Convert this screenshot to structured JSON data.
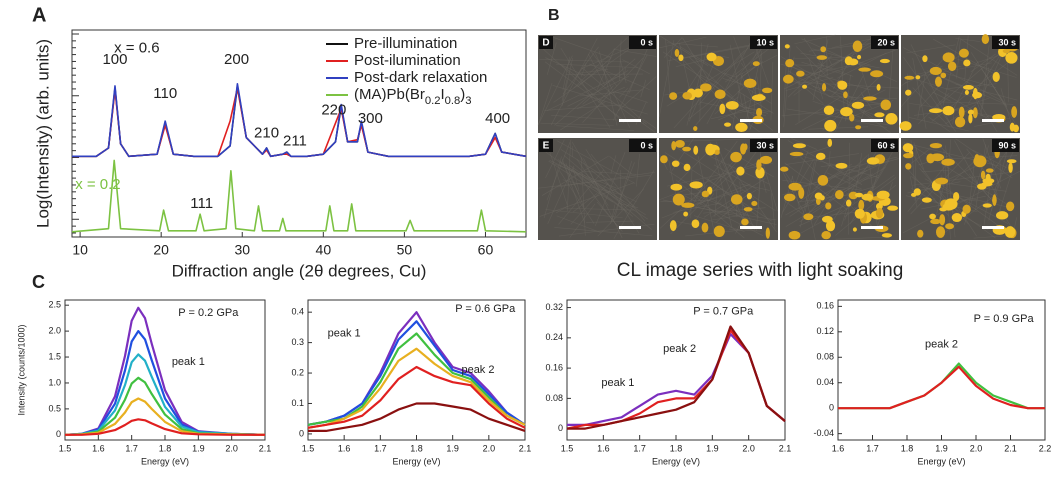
{
  "panel_labels": [
    "A",
    "B",
    "C"
  ],
  "panel_b": {
    "rows": [
      {
        "label": "D",
        "times": [
          "0 s",
          "10 s",
          "20 s",
          "30 s"
        ]
      },
      {
        "label": "E",
        "times": [
          "0 s",
          "30 s",
          "60 s",
          "90 s"
        ]
      }
    ],
    "caption": "CL image series with light soaking"
  },
  "chart_data": [
    {
      "type": "line",
      "xlabel": "Diffraction angle (2θ degrees, Cu)",
      "ylabel": "Log(Intensity) (arb. units)",
      "xlim": [
        9,
        65
      ],
      "xticks": [
        10,
        20,
        30,
        40,
        50,
        60
      ],
      "ylim": [
        0,
        10
      ],
      "legend": "upper right",
      "series": [
        {
          "name": "Pre-illumination",
          "color": "#111111",
          "x": [
            9,
            12,
            13.5,
            14.3,
            15,
            16,
            19.5,
            20.5,
            21.5,
            24,
            27,
            28.5,
            29.4,
            30.5,
            32.5,
            33,
            33.5,
            35,
            35.5,
            36,
            38,
            40,
            41.5,
            42.2,
            43,
            44.2,
            44.7,
            45.5,
            48,
            53,
            58,
            60,
            61.2,
            62,
            65
          ],
          "values": [
            3.9,
            3.9,
            4.3,
            7.2,
            4.5,
            3.9,
            4,
            5.5,
            4,
            3.9,
            3.9,
            4.4,
            7.3,
            4.8,
            4,
            4.3,
            3.9,
            4,
            4.1,
            3.9,
            3.9,
            4,
            4.6,
            6.3,
            4.6,
            4.6,
            5.5,
            4.1,
            3.9,
            3.9,
            3.9,
            4,
            5,
            4.1,
            3.9
          ]
        },
        {
          "name": "Post-ilumination",
          "color": "#e02020",
          "x": [
            9,
            12,
            13.5,
            14.3,
            15,
            16,
            19.5,
            20.5,
            21.5,
            24,
            27,
            28.5,
            29.4,
            30.5,
            32.5,
            33,
            33.5,
            35,
            35.5,
            36,
            38,
            40,
            41.5,
            42.2,
            43,
            44.2,
            44.7,
            45.5,
            48,
            53,
            58,
            60,
            61.2,
            62,
            65
          ],
          "values": [
            3.9,
            3.9,
            4.3,
            7.1,
            4.5,
            3.9,
            4,
            5.4,
            4,
            3.9,
            3.9,
            5.6,
            7.2,
            4.8,
            4,
            4.2,
            3.9,
            4,
            4,
            3.9,
            3.9,
            4,
            5.5,
            6.2,
            4.6,
            4.7,
            5.4,
            4.1,
            3.9,
            3.9,
            3.9,
            4,
            4.8,
            4.1,
            3.9
          ]
        },
        {
          "name": "Post-dark relaxation",
          "color": "#3040c0",
          "x": [
            9,
            12,
            13.5,
            14.3,
            15,
            16,
            19.5,
            20.5,
            21.5,
            24,
            27,
            28.5,
            29.4,
            30.5,
            32.5,
            33,
            33.5,
            35,
            35.5,
            36,
            38,
            40,
            41.5,
            42.2,
            43,
            44.2,
            44.7,
            45.5,
            48,
            53,
            58,
            60,
            61.2,
            62,
            65
          ],
          "values": [
            3.9,
            3.9,
            4.3,
            7.3,
            4.5,
            3.9,
            4,
            5.6,
            4,
            3.9,
            3.9,
            4.4,
            7.4,
            4.8,
            4,
            4.3,
            3.9,
            4,
            4.1,
            3.9,
            3.9,
            4,
            4.6,
            6.4,
            4.6,
            4.6,
            5.6,
            4.1,
            3.9,
            3.9,
            3.9,
            4,
            5,
            4.1,
            3.9
          ]
        },
        {
          "name": "(MA)Pb(Br0.2I0.8)3",
          "color": "#7cc242",
          "x": [
            9,
            13.5,
            14.2,
            15,
            19.8,
            20.3,
            20.9,
            24.3,
            24.8,
            25.3,
            28,
            28.6,
            29.2,
            31.5,
            32,
            32.5,
            34.6,
            35,
            35.4,
            40.3,
            40.8,
            41.3,
            43,
            43.5,
            44,
            50.2,
            50.7,
            51.2,
            59,
            59.5,
            60,
            65
          ],
          "values": [
            0.25,
            0.4,
            3.7,
            0.4,
            0.3,
            1.3,
            0.3,
            0.3,
            1.1,
            0.3,
            0.4,
            3.2,
            0.4,
            0.3,
            1.5,
            0.3,
            0.3,
            0.9,
            0.3,
            0.3,
            1.5,
            0.3,
            0.3,
            1.6,
            0.3,
            0.3,
            0.8,
            0.3,
            0.3,
            1.3,
            0.3,
            0.25
          ]
        }
      ],
      "annotations": [
        {
          "text": "x = 0.6",
          "x": 17,
          "y": 9.1
        },
        {
          "text": "x = 0.2",
          "x": 12.2,
          "y": 2.5,
          "color": "#7cc242"
        },
        {
          "text": "100",
          "x": 14.3,
          "y": 8.55
        },
        {
          "text": "110",
          "x": 20.5,
          "y": 6.9
        },
        {
          "text": "200",
          "x": 29.3,
          "y": 8.55
        },
        {
          "text": "210",
          "x": 33,
          "y": 5.0
        },
        {
          "text": "211",
          "x": 36.5,
          "y": 4.6
        },
        {
          "text": "220",
          "x": 41.3,
          "y": 6.1
        },
        {
          "text": "300",
          "x": 45.8,
          "y": 5.7
        },
        {
          "text": "400",
          "x": 61.5,
          "y": 5.7
        },
        {
          "text": "111",
          "x": 25,
          "y": 1.6
        }
      ]
    },
    {
      "type": "line",
      "xlabel": "Energy (eV)",
      "ylabel": "Intensity (counts/1000)",
      "xlim": [
        1.5,
        2.1
      ],
      "xticks": [
        1.5,
        1.6,
        1.7,
        1.8,
        1.9,
        {
          "value": 2,
          "label": "2.0"
        },
        2.1
      ],
      "ylim": [
        -0.1,
        2.6
      ],
      "yticks": [
        0,
        0.5,
        {
          "value": 1,
          "label": "1.0"
        },
        1.5,
        {
          "value": 2,
          "label": "2.0"
        },
        2.5
      ],
      "series": [
        {
          "color": "#7b2fbe",
          "x": [
            1.5,
            1.55,
            1.6,
            1.65,
            1.68,
            1.7,
            1.72,
            1.74,
            1.76,
            1.8,
            1.85,
            1.9,
            2,
            2.1
          ],
          "values": [
            0,
            0.02,
            0.12,
            0.74,
            1.52,
            2.2,
            2.45,
            2.25,
            1.76,
            0.86,
            0.25,
            0.07,
            0.02,
            0
          ]
        },
        {
          "color": "#2050e0",
          "x": [
            1.5,
            1.55,
            1.6,
            1.65,
            1.68,
            1.7,
            1.72,
            1.74,
            1.76,
            1.8,
            1.85,
            1.9,
            2,
            2.1
          ],
          "values": [
            0,
            0.02,
            0.1,
            0.6,
            1.24,
            1.8,
            2,
            1.84,
            1.44,
            0.7,
            0.2,
            0.06,
            0.02,
            0
          ]
        },
        {
          "color": "#22b0c8",
          "x": [
            1.5,
            1.55,
            1.6,
            1.65,
            1.68,
            1.7,
            1.72,
            1.74,
            1.76,
            1.8,
            1.85,
            1.9,
            2,
            2.1
          ],
          "values": [
            0,
            0.02,
            0.08,
            0.47,
            0.96,
            1.4,
            1.55,
            1.43,
            1.12,
            0.54,
            0.16,
            0.05,
            0.02,
            0
          ]
        },
        {
          "color": "#40c040",
          "x": [
            1.5,
            1.55,
            1.6,
            1.65,
            1.68,
            1.7,
            1.72,
            1.74,
            1.76,
            1.8,
            1.85,
            1.9,
            2,
            2.1
          ],
          "values": [
            0,
            0.01,
            0.06,
            0.33,
            0.68,
            0.99,
            1.1,
            1.01,
            0.79,
            0.39,
            0.11,
            0.03,
            0.01,
            0
          ]
        },
        {
          "color": "#e8b020",
          "x": [
            1.5,
            1.55,
            1.6,
            1.65,
            1.68,
            1.7,
            1.72,
            1.74,
            1.76,
            1.8,
            1.85,
            1.9,
            2,
            2.1
          ],
          "values": [
            0,
            0.01,
            0.04,
            0.21,
            0.43,
            0.63,
            0.7,
            0.64,
            0.5,
            0.25,
            0.07,
            0.02,
            0.01,
            0
          ]
        },
        {
          "color": "#e02020",
          "x": [
            1.5,
            1.55,
            1.6,
            1.65,
            1.68,
            1.7,
            1.72,
            1.74,
            1.76,
            1.8,
            1.85,
            1.9,
            2,
            2.1
          ],
          "values": [
            0,
            0,
            0.02,
            0.09,
            0.19,
            0.27,
            0.3,
            0.28,
            0.22,
            0.11,
            0.03,
            0.01,
            0,
            0
          ]
        }
      ],
      "annotations": [
        {
          "text": "P = 0.2 GPa",
          "x": 1.93,
          "y": 2.35
        },
        {
          "text": "peak 1",
          "x": 1.87,
          "y": 1.4
        }
      ]
    },
    {
      "type": "line",
      "xlabel": "Energy (eV)",
      "xlim": [
        1.5,
        2.1
      ],
      "xticks": [
        1.5,
        1.6,
        1.7,
        1.8,
        1.9,
        {
          "value": 2,
          "label": "2.0"
        },
        2.1
      ],
      "ylim": [
        -0.02,
        0.44
      ],
      "yticks": [
        0,
        0.1,
        0.2,
        0.3,
        0.4
      ],
      "series": [
        {
          "color": "#7b2fbe",
          "x": [
            1.5,
            1.55,
            1.6,
            1.65,
            1.7,
            1.75,
            1.8,
            1.85,
            1.9,
            1.95,
            2,
            2.05,
            2.1
          ],
          "values": [
            0.03,
            0.04,
            0.06,
            0.1,
            0.2,
            0.33,
            0.4,
            0.3,
            0.22,
            0.2,
            0.14,
            0.07,
            0.03
          ]
        },
        {
          "color": "#2050e0",
          "x": [
            1.5,
            1.55,
            1.6,
            1.65,
            1.7,
            1.75,
            1.8,
            1.85,
            1.9,
            1.95,
            2,
            2.05,
            2.1
          ],
          "values": [
            0.03,
            0.04,
            0.06,
            0.1,
            0.19,
            0.31,
            0.37,
            0.29,
            0.21,
            0.19,
            0.13,
            0.07,
            0.03
          ]
        },
        {
          "color": "#40c040",
          "x": [
            1.5,
            1.55,
            1.6,
            1.65,
            1.7,
            1.75,
            1.8,
            1.85,
            1.9,
            1.95,
            2,
            2.05,
            2.1
          ],
          "values": [
            0.03,
            0.04,
            0.05,
            0.09,
            0.17,
            0.28,
            0.33,
            0.26,
            0.2,
            0.18,
            0.12,
            0.06,
            0.03
          ]
        },
        {
          "color": "#e8b020",
          "x": [
            1.5,
            1.55,
            1.6,
            1.65,
            1.7,
            1.75,
            1.8,
            1.85,
            1.9,
            1.95,
            2,
            2.05,
            2.1
          ],
          "values": [
            0.02,
            0.03,
            0.05,
            0.08,
            0.15,
            0.24,
            0.28,
            0.23,
            0.19,
            0.17,
            0.11,
            0.06,
            0.03
          ]
        },
        {
          "color": "#e02020",
          "x": [
            1.5,
            1.55,
            1.6,
            1.65,
            1.7,
            1.75,
            1.8,
            1.85,
            1.9,
            1.95,
            2,
            2.05,
            2.1
          ],
          "values": [
            0.02,
            0.03,
            0.04,
            0.06,
            0.11,
            0.18,
            0.22,
            0.19,
            0.17,
            0.16,
            0.1,
            0.05,
            0.02
          ]
        },
        {
          "color": "#8a1010",
          "x": [
            1.5,
            1.55,
            1.6,
            1.65,
            1.7,
            1.75,
            1.8,
            1.85,
            1.9,
            1.95,
            2,
            2.05,
            2.1
          ],
          "values": [
            0.01,
            0.01,
            0.02,
            0.03,
            0.05,
            0.08,
            0.1,
            0.1,
            0.09,
            0.08,
            0.05,
            0.03,
            0.01
          ]
        }
      ],
      "annotations": [
        {
          "text": "P = 0.6 GPa",
          "x": 1.99,
          "y": 0.41
        },
        {
          "text": "peak 1",
          "x": 1.6,
          "y": 0.33
        },
        {
          "text": "peak 2",
          "x": 1.97,
          "y": 0.21
        }
      ]
    },
    {
      "type": "line",
      "xlabel": "Energy (eV)",
      "xlim": [
        1.5,
        2.1
      ],
      "xticks": [
        1.5,
        1.6,
        1.7,
        1.8,
        1.9,
        {
          "value": 2,
          "label": "2.0"
        },
        2.1
      ],
      "ylim": [
        -0.03,
        0.34
      ],
      "yticks": [
        0,
        0.08,
        0.16,
        0.24,
        0.32
      ],
      "series": [
        {
          "color": "#7b2fbe",
          "x": [
            1.5,
            1.55,
            1.6,
            1.65,
            1.7,
            1.75,
            1.8,
            1.85,
            1.9,
            1.95,
            2,
            2.05,
            2.1
          ],
          "values": [
            0.01,
            0.01,
            0.02,
            0.03,
            0.06,
            0.09,
            0.1,
            0.09,
            0.14,
            0.25,
            0.2,
            0.06,
            0.02
          ]
        },
        {
          "color": "#e02020",
          "x": [
            1.5,
            1.55,
            1.6,
            1.65,
            1.7,
            1.75,
            1.8,
            1.85,
            1.9,
            1.95,
            2,
            2.05,
            2.1
          ],
          "values": [
            0,
            0.01,
            0.01,
            0.02,
            0.04,
            0.07,
            0.08,
            0.08,
            0.13,
            0.26,
            0.2,
            0.06,
            0.02
          ]
        },
        {
          "color": "#8a1010",
          "x": [
            1.5,
            1.55,
            1.6,
            1.65,
            1.7,
            1.75,
            1.8,
            1.85,
            1.9,
            1.95,
            2,
            2.05,
            2.1
          ],
          "values": [
            0,
            0,
            0.01,
            0.02,
            0.03,
            0.04,
            0.05,
            0.07,
            0.13,
            0.27,
            0.2,
            0.06,
            0.02
          ]
        }
      ],
      "annotations": [
        {
          "text": "P = 0.7 GPa",
          "x": 1.93,
          "y": 0.31
        },
        {
          "text": "peak 2",
          "x": 1.81,
          "y": 0.21
        },
        {
          "text": "peak 1",
          "x": 1.64,
          "y": 0.12
        }
      ]
    },
    {
      "type": "line",
      "xlabel": "Energy (eV)",
      "xlim": [
        1.6,
        2.2
      ],
      "xticks": [
        1.6,
        1.7,
        1.8,
        1.9,
        {
          "value": 2,
          "label": "2.0"
        },
        2.1,
        2.2
      ],
      "ylim": [
        -0.05,
        0.17
      ],
      "yticks": [
        -0.04,
        0,
        0.04,
        0.08,
        0.12,
        0.16
      ],
      "series": [
        {
          "color": "#40c040",
          "x": [
            1.6,
            1.65,
            1.7,
            1.75,
            1.8,
            1.85,
            1.9,
            1.95,
            2,
            2.05,
            2.1,
            2.15,
            2.2
          ],
          "values": [
            0,
            0,
            0,
            0,
            0.01,
            0.02,
            0.04,
            0.07,
            0.04,
            0.02,
            0.01,
            0,
            0
          ]
        },
        {
          "color": "#e02020",
          "x": [
            1.6,
            1.65,
            1.7,
            1.75,
            1.8,
            1.85,
            1.9,
            1.95,
            2,
            2.05,
            2.1,
            2.15,
            2.2
          ],
          "values": [
            0,
            0,
            0,
            0,
            0.01,
            0.02,
            0.04,
            0.065,
            0.035,
            0.015,
            0.005,
            0,
            0
          ]
        }
      ],
      "annotations": [
        {
          "text": "P = 0.9 GPa",
          "x": 2.08,
          "y": 0.14
        },
        {
          "text": "peak 2",
          "x": 1.9,
          "y": 0.1
        }
      ]
    }
  ]
}
